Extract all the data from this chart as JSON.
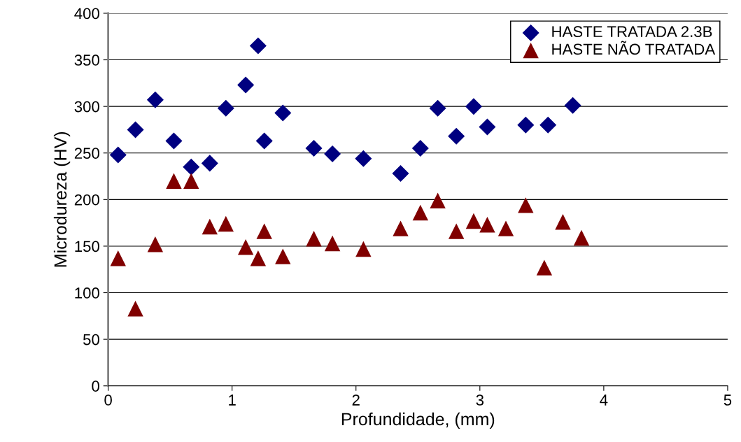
{
  "chart_data": {
    "type": "scatter",
    "xlabel": "Profundidade, (mm)",
    "ylabel": "Microdureza (HV)",
    "xlim": [
      0,
      5
    ],
    "xticks": [
      0,
      1,
      2,
      3,
      4,
      5
    ],
    "ylim": [
      0,
      400
    ],
    "yticks": [
      0,
      50,
      100,
      150,
      200,
      250,
      300,
      350,
      400
    ],
    "grid": "y",
    "legend": "top right",
    "series": [
      {
        "name": "HASTE TRATADA 2.3B",
        "color": "#000080",
        "marker": "diamond",
        "x": [
          0.08,
          0.22,
          0.38,
          0.53,
          0.67,
          0.82,
          0.95,
          1.11,
          1.21,
          1.26,
          1.41,
          1.66,
          1.81,
          2.06,
          2.36,
          2.52,
          2.66,
          2.81,
          2.95,
          3.06,
          3.37,
          3.55,
          3.75
        ],
        "values": [
          248,
          275,
          307,
          263,
          235,
          239,
          298,
          323,
          365,
          263,
          293,
          255,
          249,
          244,
          228,
          255,
          298,
          268,
          300,
          278,
          280,
          280,
          301
        ]
      },
      {
        "name": "HASTE NÃO TRATADA",
        "color": "#800000",
        "marker": "triangle",
        "x": [
          0.08,
          0.22,
          0.38,
          0.53,
          0.67,
          0.82,
          0.95,
          1.11,
          1.21,
          1.26,
          1.41,
          1.66,
          1.81,
          2.06,
          2.36,
          2.52,
          2.66,
          2.81,
          2.95,
          3.06,
          3.21,
          3.37,
          3.52,
          3.67,
          3.82
        ],
        "values": [
          137,
          83,
          152,
          220,
          220,
          171,
          174,
          149,
          137,
          166,
          139,
          158,
          153,
          147,
          169,
          186,
          199,
          166,
          177,
          173,
          169,
          194,
          127,
          176,
          159
        ]
      }
    ]
  }
}
